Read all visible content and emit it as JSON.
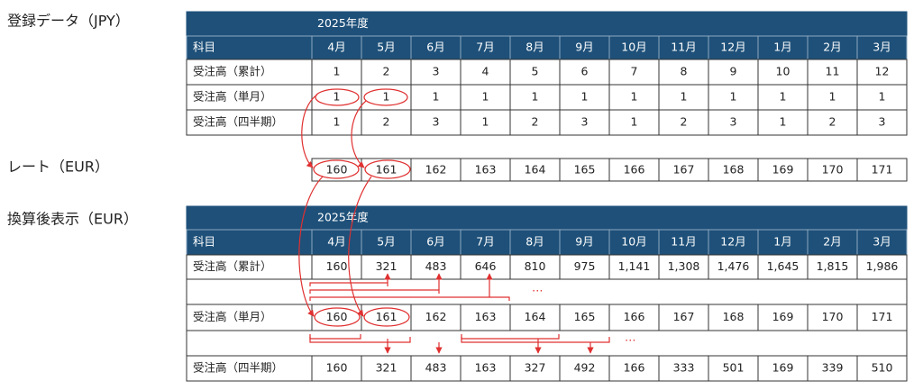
{
  "jpy": {
    "label": "登録データ（JPY）",
    "year": "2025年度",
    "header": [
      "科目",
      "4月",
      "5月",
      "6月",
      "7月",
      "8月",
      "9月",
      "10月",
      "11月",
      "12月",
      "1月",
      "2月",
      "3月"
    ],
    "rows": [
      [
        "受注高（累計）",
        "1",
        "2",
        "3",
        "4",
        "5",
        "6",
        "7",
        "8",
        "9",
        "10",
        "11",
        "12"
      ],
      [
        "受注高（単月）",
        "1",
        "1",
        "1",
        "1",
        "1",
        "1",
        "1",
        "1",
        "1",
        "1",
        "1",
        "1"
      ],
      [
        "受注高（四半期）",
        "1",
        "2",
        "3",
        "1",
        "2",
        "3",
        "1",
        "2",
        "3",
        "1",
        "2",
        "3"
      ]
    ]
  },
  "rate": {
    "label": "レート（EUR）",
    "values": [
      "160",
      "161",
      "162",
      "163",
      "164",
      "165",
      "166",
      "167",
      "168",
      "169",
      "170",
      "171"
    ]
  },
  "eur": {
    "label": "換算後表示（EUR）",
    "year": "2025年度",
    "header": [
      "科目",
      "4月",
      "5月",
      "6月",
      "7月",
      "8月",
      "9月",
      "10月",
      "11月",
      "12月",
      "1月",
      "2月",
      "3月"
    ],
    "rows": [
      [
        "受注高（累計）",
        "160",
        "321",
        "483",
        "646",
        "810",
        "975",
        "1,141",
        "1,308",
        "1,476",
        "1,645",
        "1,815",
        "1,986"
      ],
      [
        "受注高（単月）",
        "160",
        "161",
        "162",
        "163",
        "164",
        "165",
        "166",
        "167",
        "168",
        "169",
        "170",
        "171"
      ],
      [
        "受注高（四半期）",
        "160",
        "321",
        "483",
        "163",
        "327",
        "492",
        "166",
        "333",
        "501",
        "169",
        "339",
        "510"
      ]
    ]
  },
  "annotations": [
    "…",
    "…"
  ]
}
